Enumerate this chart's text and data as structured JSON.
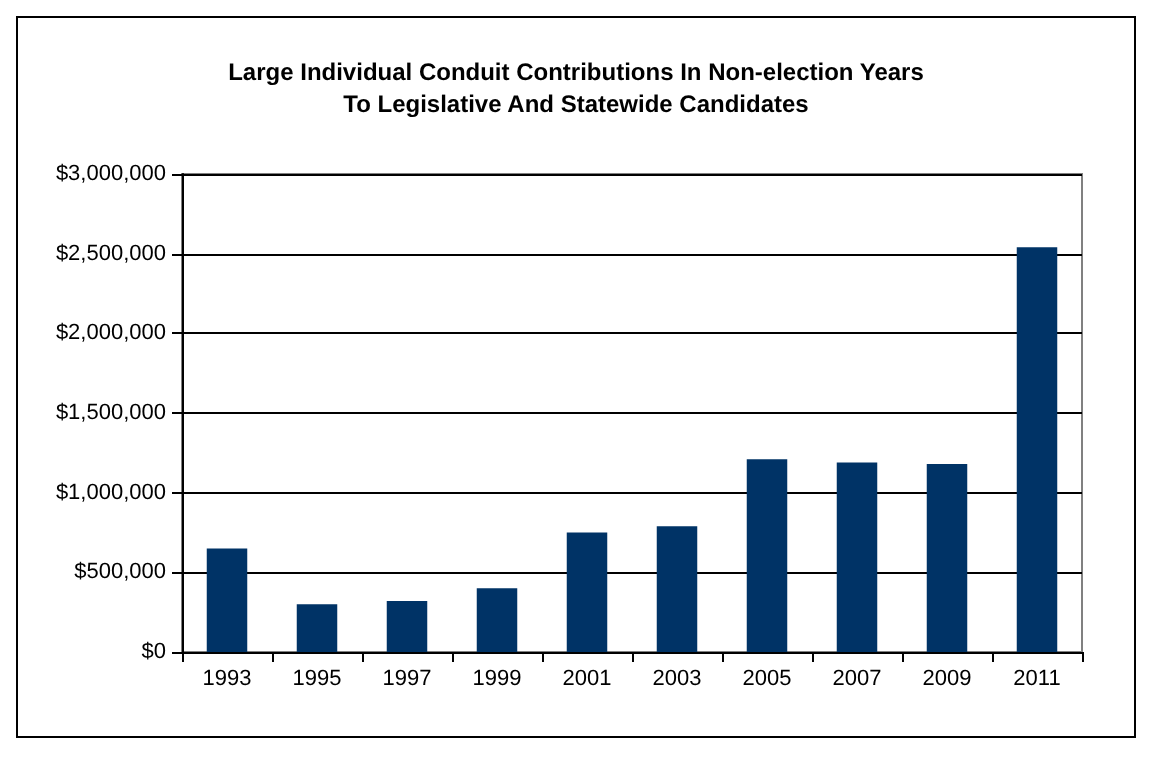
{
  "chart_data": {
    "type": "bar",
    "title": "Large Individual Conduit Contributions In Non-election Years\nTo Legislative And Statewide Candidates",
    "categories": [
      "1993",
      "1995",
      "1997",
      "1999",
      "2001",
      "2003",
      "2005",
      "2007",
      "2009",
      "2011"
    ],
    "values": [
      650000,
      300000,
      320000,
      400000,
      750000,
      790000,
      1210000,
      1190000,
      1180000,
      2540000
    ],
    "color": "#003366",
    "ylim": [
      0,
      3000000
    ],
    "yticks": [
      {
        "value": 0,
        "label": "$0"
      },
      {
        "value": 500000,
        "label": "$500,000"
      },
      {
        "value": 1000000,
        "label": "$1,000,000"
      },
      {
        "value": 1500000,
        "label": "$1,500,000"
      },
      {
        "value": 2000000,
        "label": "$2,000,000"
      },
      {
        "value": 2500000,
        "label": "$2,500,000"
      },
      {
        "value": 3000000,
        "label": "$3,000,000"
      }
    ],
    "grid": "y"
  }
}
